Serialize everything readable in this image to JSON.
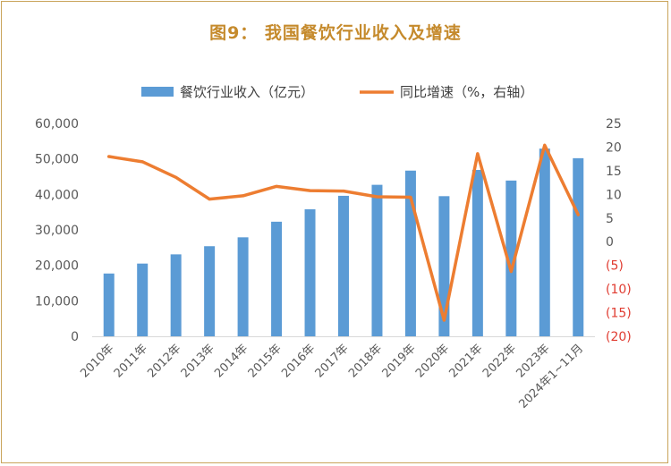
{
  "title": "图9：  我国餐饮行业收入及增速",
  "colors": {
    "bar": "#5b9bd5",
    "line": "#ed7d31",
    "title": "#c58a2c",
    "negative_tick": "#e03c31",
    "frame": "#c9a45a"
  },
  "chart_data": {
    "type": "bar",
    "title": "图9：  我国餐饮行业收入及增速",
    "legend_position": "top",
    "grid": false,
    "categories": [
      "2010年",
      "2011年",
      "2012年",
      "2013年",
      "2014年",
      "2015年",
      "2016年",
      "2017年",
      "2018年",
      "2019年",
      "2020年",
      "2021年",
      "2022年",
      "2023年",
      "2024年1~11月"
    ],
    "series": [
      {
        "name": "餐饮行业收入（亿元）",
        "type": "bar",
        "axis": "left",
        "values": [
          17700,
          20500,
          23100,
          25400,
          27900,
          32300,
          35800,
          39600,
          42700,
          46700,
          39500,
          46900,
          43900,
          52900,
          50200
        ]
      },
      {
        "name": "同比增速（%，右轴）",
        "type": "line",
        "axis": "right",
        "values": [
          18.0,
          16.9,
          13.6,
          9.0,
          9.7,
          11.7,
          10.8,
          10.7,
          9.5,
          9.4,
          -16.6,
          18.6,
          -6.3,
          20.4,
          5.7
        ]
      }
    ],
    "y_left": {
      "ylim": [
        0,
        60000
      ],
      "ticks": [
        "60,000",
        "50,000",
        "40,000",
        "30,000",
        "20,000",
        "10,000",
        "0"
      ]
    },
    "y_right": {
      "ylim": [
        -20,
        25
      ],
      "ticks": [
        "25",
        "20",
        "15",
        "10",
        "5",
        "0",
        "(5)",
        "(10)",
        "(15)",
        "(20)"
      ]
    }
  }
}
